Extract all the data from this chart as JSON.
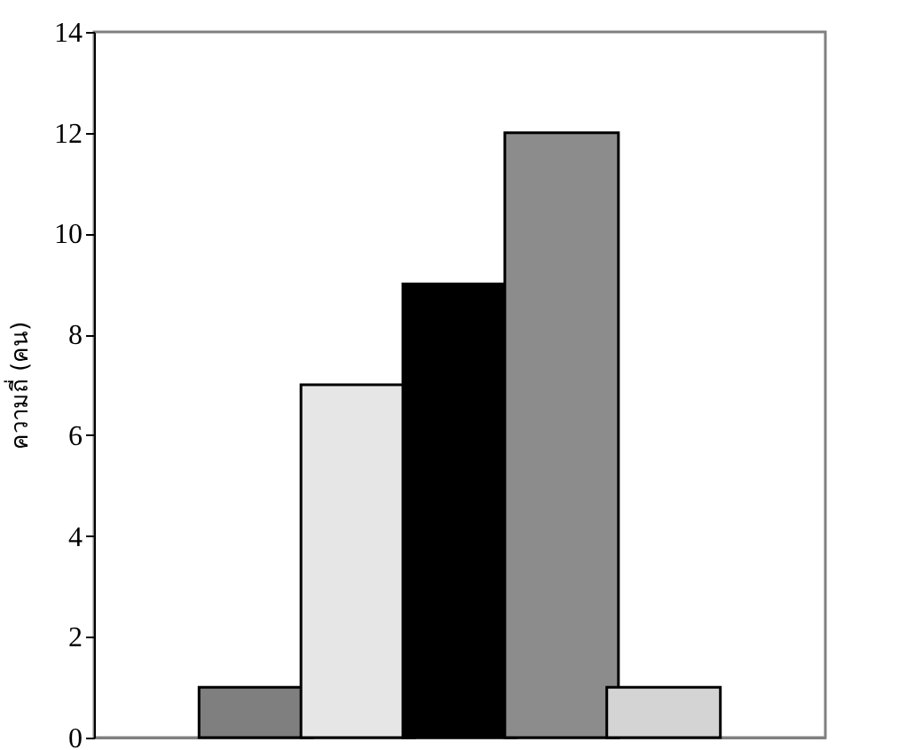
{
  "chart_data": {
    "type": "bar",
    "ylabel": "ความถี่ (คน)",
    "categories": [
      null,
      null,
      null,
      null,
      null
    ],
    "values": [
      1,
      7,
      9,
      12,
      1
    ],
    "colors": [
      "#7f7f7f",
      "#e6e6e6",
      "#000000",
      "#8c8c8c",
      "#d4d4d4"
    ],
    "ylim": [
      0,
      14
    ],
    "yticks": [
      0,
      2,
      4,
      6,
      8,
      10,
      12,
      14
    ],
    "grid": false
  }
}
